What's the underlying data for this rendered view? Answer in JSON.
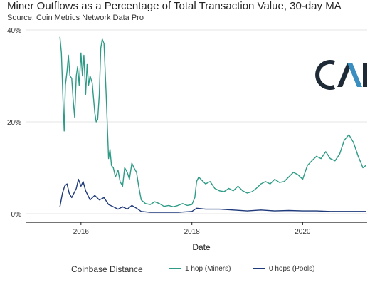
{
  "title": "Miner Outflows as a Percentage of Total Transaction Value, 30-day MA",
  "subtitle": "Source: Coin Metrics Network Data Pro",
  "colors": {
    "miners": "#2e9b86",
    "pools": "#1f3a7a",
    "grid": "#e6e6e6",
    "axis": "#222222"
  },
  "logo_name": "coin-metrics-logo",
  "chart_data": {
    "type": "line",
    "title": "Miner Outflows as a Percentage of Total Transaction Value, 30-day MA",
    "subtitle": "Source: Coin Metrics Network Data Pro",
    "xlabel": "Date",
    "ylabel": "",
    "x_ticks": [
      "2016",
      "2018",
      "2020"
    ],
    "y_ticks": [
      "0%",
      "20%",
      "40%"
    ],
    "ylim": [
      0,
      40
    ],
    "xlim": [
      "2015-01-01",
      "2021-03-01"
    ],
    "grid": true,
    "legend_title": "Coinbase Distance",
    "legend_position": "bottom",
    "series": [
      {
        "name": "1 hop (Miners)",
        "color": "#2e9b86",
        "points": [
          [
            "2015-08-15",
            38.5
          ],
          [
            "2015-08-25",
            35.0
          ],
          [
            "2015-09-05",
            24.0
          ],
          [
            "2015-09-12",
            18.0
          ],
          [
            "2015-09-20",
            28.0
          ],
          [
            "2015-10-01",
            31.0
          ],
          [
            "2015-10-10",
            34.5
          ],
          [
            "2015-10-20",
            30.0
          ],
          [
            "2015-11-01",
            29.5
          ],
          [
            "2015-11-10",
            25.0
          ],
          [
            "2015-11-20",
            21.0
          ],
          [
            "2015-12-01",
            30.0
          ],
          [
            "2015-12-10",
            32.0
          ],
          [
            "2015-12-20",
            28.0
          ],
          [
            "2016-01-01",
            35.0
          ],
          [
            "2016-01-10",
            30.0
          ],
          [
            "2016-01-20",
            34.5
          ],
          [
            "2016-02-01",
            26.0
          ],
          [
            "2016-02-10",
            32.5
          ],
          [
            "2016-02-20",
            28.0
          ],
          [
            "2016-03-01",
            30.0
          ],
          [
            "2016-03-15",
            28.5
          ],
          [
            "2016-04-01",
            22.0
          ],
          [
            "2016-04-10",
            20.0
          ],
          [
            "2016-04-20",
            20.5
          ],
          [
            "2016-05-01",
            26.0
          ],
          [
            "2016-05-10",
            36.0
          ],
          [
            "2016-05-20",
            38.0
          ],
          [
            "2016-06-01",
            37.0
          ],
          [
            "2016-06-15",
            26.0
          ],
          [
            "2016-07-01",
            12.0
          ],
          [
            "2016-07-10",
            14.0
          ],
          [
            "2016-07-20",
            10.5
          ],
          [
            "2016-08-01",
            10.0
          ],
          [
            "2016-08-15",
            8.0
          ],
          [
            "2016-09-01",
            9.5
          ],
          [
            "2016-09-15",
            7.0
          ],
          [
            "2016-10-01",
            6.0
          ],
          [
            "2016-10-15",
            10.0
          ],
          [
            "2016-11-01",
            9.0
          ],
          [
            "2016-11-15",
            7.5
          ],
          [
            "2016-12-01",
            11.0
          ],
          [
            "2016-12-15",
            10.0
          ],
          [
            "2017-01-01",
            9.0
          ],
          [
            "2017-01-15",
            6.0
          ],
          [
            "2017-02-01",
            3.0
          ],
          [
            "2017-03-01",
            2.2
          ],
          [
            "2017-04-01",
            2.0
          ],
          [
            "2017-05-01",
            2.6
          ],
          [
            "2017-06-01",
            2.2
          ],
          [
            "2017-07-01",
            1.6
          ],
          [
            "2017-08-01",
            1.8
          ],
          [
            "2017-09-01",
            1.5
          ],
          [
            "2017-10-01",
            1.8
          ],
          [
            "2017-11-01",
            2.2
          ],
          [
            "2017-12-01",
            1.8
          ],
          [
            "2018-01-01",
            2.0
          ],
          [
            "2018-01-20",
            3.5
          ],
          [
            "2018-02-01",
            7.0
          ],
          [
            "2018-02-15",
            8.0
          ],
          [
            "2018-03-01",
            7.5
          ],
          [
            "2018-04-01",
            6.5
          ],
          [
            "2018-05-01",
            7.0
          ],
          [
            "2018-06-01",
            5.5
          ],
          [
            "2018-07-01",
            5.0
          ],
          [
            "2018-08-01",
            4.8
          ],
          [
            "2018-09-01",
            5.5
          ],
          [
            "2018-10-01",
            5.0
          ],
          [
            "2018-11-01",
            6.0
          ],
          [
            "2018-12-01",
            5.0
          ],
          [
            "2019-01-01",
            4.5
          ],
          [
            "2019-02-01",
            4.8
          ],
          [
            "2019-03-01",
            5.5
          ],
          [
            "2019-04-01",
            6.5
          ],
          [
            "2019-05-01",
            7.0
          ],
          [
            "2019-06-01",
            6.5
          ],
          [
            "2019-07-01",
            7.5
          ],
          [
            "2019-08-01",
            6.8
          ],
          [
            "2019-09-01",
            7.0
          ],
          [
            "2019-10-01",
            8.0
          ],
          [
            "2019-11-01",
            9.0
          ],
          [
            "2019-12-01",
            8.5
          ],
          [
            "2020-01-01",
            7.5
          ],
          [
            "2020-02-01",
            10.5
          ],
          [
            "2020-03-01",
            11.5
          ],
          [
            "2020-04-01",
            12.5
          ],
          [
            "2020-05-01",
            12.0
          ],
          [
            "2020-06-01",
            13.5
          ],
          [
            "2020-07-01",
            12.0
          ],
          [
            "2020-08-01",
            11.5
          ],
          [
            "2020-09-01",
            13.0
          ],
          [
            "2020-10-01",
            16.0
          ],
          [
            "2020-11-01",
            17.2
          ],
          [
            "2020-12-01",
            15.5
          ],
          [
            "2021-01-01",
            12.5
          ],
          [
            "2021-01-20",
            11.0
          ],
          [
            "2021-02-01",
            10.0
          ],
          [
            "2021-02-20",
            10.5
          ]
        ]
      },
      {
        "name": "0 hops (Pools)",
        "color": "#1f3a7a",
        "points": [
          [
            "2015-08-15",
            1.5
          ],
          [
            "2015-09-01",
            4.5
          ],
          [
            "2015-09-15",
            6.0
          ],
          [
            "2015-10-01",
            6.5
          ],
          [
            "2015-10-15",
            4.5
          ],
          [
            "2015-11-01",
            3.5
          ],
          [
            "2015-12-01",
            5.5
          ],
          [
            "2015-12-15",
            7.5
          ],
          [
            "2016-01-01",
            6.0
          ],
          [
            "2016-01-15",
            7.0
          ],
          [
            "2016-02-01",
            5.0
          ],
          [
            "2016-03-01",
            3.0
          ],
          [
            "2016-04-01",
            4.0
          ],
          [
            "2016-05-01",
            3.0
          ],
          [
            "2016-06-01",
            3.5
          ],
          [
            "2016-07-01",
            2.0
          ],
          [
            "2016-08-01",
            1.5
          ],
          [
            "2016-09-01",
            1.0
          ],
          [
            "2016-10-01",
            1.5
          ],
          [
            "2016-11-01",
            1.0
          ],
          [
            "2016-12-01",
            1.8
          ],
          [
            "2017-01-01",
            1.2
          ],
          [
            "2017-02-01",
            0.5
          ],
          [
            "2017-04-01",
            0.3
          ],
          [
            "2017-07-01",
            0.3
          ],
          [
            "2017-10-01",
            0.3
          ],
          [
            "2018-01-01",
            0.5
          ],
          [
            "2018-02-01",
            1.2
          ],
          [
            "2018-04-01",
            1.0
          ],
          [
            "2018-07-01",
            1.0
          ],
          [
            "2018-10-01",
            0.8
          ],
          [
            "2019-01-01",
            0.6
          ],
          [
            "2019-04-01",
            0.8
          ],
          [
            "2019-07-01",
            0.6
          ],
          [
            "2019-10-01",
            0.7
          ],
          [
            "2020-01-01",
            0.6
          ],
          [
            "2020-04-01",
            0.6
          ],
          [
            "2020-07-01",
            0.5
          ],
          [
            "2020-10-01",
            0.5
          ],
          [
            "2021-01-01",
            0.5
          ],
          [
            "2021-02-20",
            0.5
          ]
        ]
      }
    ]
  }
}
